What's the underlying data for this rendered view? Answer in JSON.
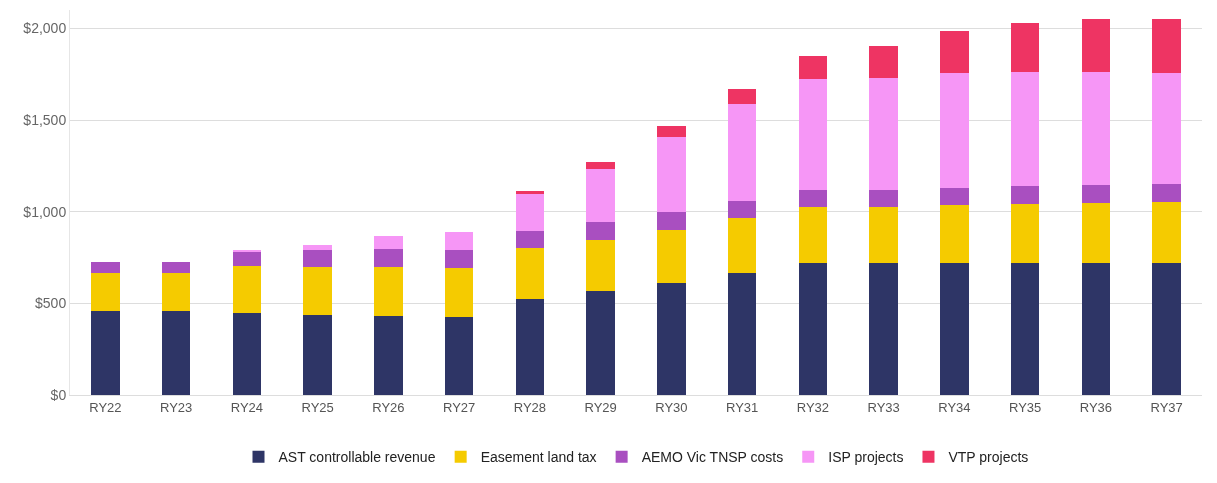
{
  "chart_data": {
    "type": "bar",
    "stacked": true,
    "categories": [
      "RY22",
      "RY23",
      "RY24",
      "RY25",
      "RY26",
      "RY27",
      "RY28",
      "RY29",
      "RY30",
      "RY31",
      "RY32",
      "RY33",
      "RY34",
      "RY35",
      "RY36",
      "RY37"
    ],
    "series": [
      {
        "name": "AST controllable revenue",
        "color": "#2e3566",
        "values": [
          460,
          460,
          445,
          435,
          430,
          425,
          525,
          565,
          610,
          665,
          720,
          720,
          720,
          720,
          720,
          720
        ]
      },
      {
        "name": "Easement land tax",
        "color": "#f5cb00",
        "values": [
          205,
          205,
          260,
          265,
          270,
          270,
          275,
          280,
          290,
          300,
          305,
          305,
          315,
          320,
          330,
          335
        ]
      },
      {
        "name": "AEMO Vic TNSP costs",
        "color": "#a94fc0",
        "values": [
          60,
          60,
          80,
          90,
          95,
          95,
          95,
          100,
          100,
          95,
          95,
          95,
          95,
          100,
          95,
          95
        ]
      },
      {
        "name": "ISP projects",
        "color": "#f696f6",
        "values": [
          null,
          null,
          5,
          30,
          70,
          100,
          200,
          290,
          410,
          525,
          605,
          610,
          625,
          620,
          615,
          605
        ]
      },
      {
        "name": "VTP projects",
        "color": "#ee3463",
        "values": [
          null,
          null,
          null,
          null,
          null,
          null,
          20,
          35,
          60,
          85,
          125,
          175,
          230,
          270,
          290,
          295
        ]
      }
    ],
    "ylim": [
      0,
      2100
    ],
    "yticks": [
      {
        "value": 0,
        "label": "$0"
      },
      {
        "value": 500,
        "label": "$500"
      },
      {
        "value": 1000,
        "label": "$1,000"
      },
      {
        "value": 1500,
        "label": "$1,500"
      },
      {
        "value": 2000,
        "label": "$2,000"
      }
    ],
    "grid": "y",
    "legend": "bottom"
  }
}
